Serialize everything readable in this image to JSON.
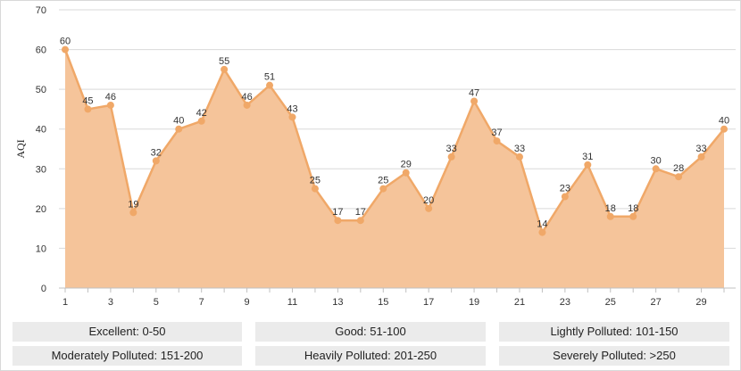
{
  "chart_data": {
    "type": "area",
    "ylabel": "AQI",
    "xlabel": "",
    "ylim": [
      0,
      70
    ],
    "yticks": [
      0,
      10,
      20,
      30,
      40,
      50,
      60,
      70
    ],
    "xticks": [
      1,
      3,
      5,
      7,
      9,
      11,
      13,
      15,
      17,
      19,
      21,
      23,
      25,
      27,
      29
    ],
    "x": [
      1,
      2,
      3,
      4,
      5,
      6,
      7,
      8,
      9,
      10,
      11,
      12,
      13,
      14,
      15,
      16,
      17,
      18,
      19,
      20,
      21,
      22,
      23,
      24,
      25,
      26,
      27,
      28,
      29,
      30
    ],
    "values": [
      60,
      45,
      46,
      19,
      32,
      40,
      42,
      55,
      46,
      51,
      43,
      25,
      17,
      17,
      25,
      29,
      20,
      33,
      47,
      37,
      33,
      14,
      23,
      31,
      18,
      18,
      30,
      28,
      33,
      40
    ],
    "grid": true,
    "colors": {
      "fill": "#f5c49a",
      "line": "#f0a868",
      "point": "#f0a868",
      "grid": "#d9d9d9"
    }
  },
  "legend": {
    "items": [
      "Excellent: 0-50",
      "Good: 51-100",
      "Lightly Polluted: 101-150",
      "Moderately Polluted: 151-200",
      "Heavily Polluted: 201-250",
      "Severely Polluted: >250"
    ]
  }
}
